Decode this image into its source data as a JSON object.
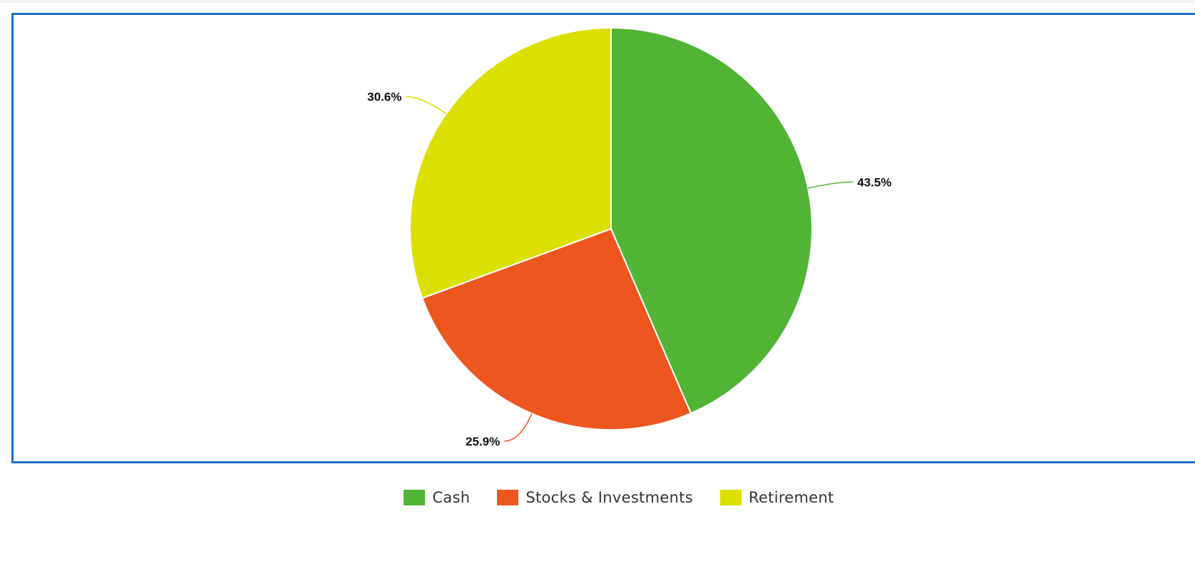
{
  "chart_data": {
    "type": "pie",
    "title": "",
    "slices": [
      {
        "name": "Cash",
        "value": 43.5,
        "label": "43.5%",
        "color": "#52b435"
      },
      {
        "name": "Stocks & Investments",
        "value": 25.9,
        "label": "25.9%",
        "color": "#ee561f"
      },
      {
        "name": "Retirement",
        "value": 30.6,
        "label": "30.6%",
        "color": "#dce000"
      }
    ],
    "start_angle_deg": 0,
    "direction": "clockwise",
    "legend_position": "bottom"
  },
  "legend": {
    "items": [
      {
        "label": "Cash",
        "color": "#52b435"
      },
      {
        "label": "Stocks & Investments",
        "color": "#ee561f"
      },
      {
        "label": "Retirement",
        "color": "#dce000"
      }
    ]
  }
}
